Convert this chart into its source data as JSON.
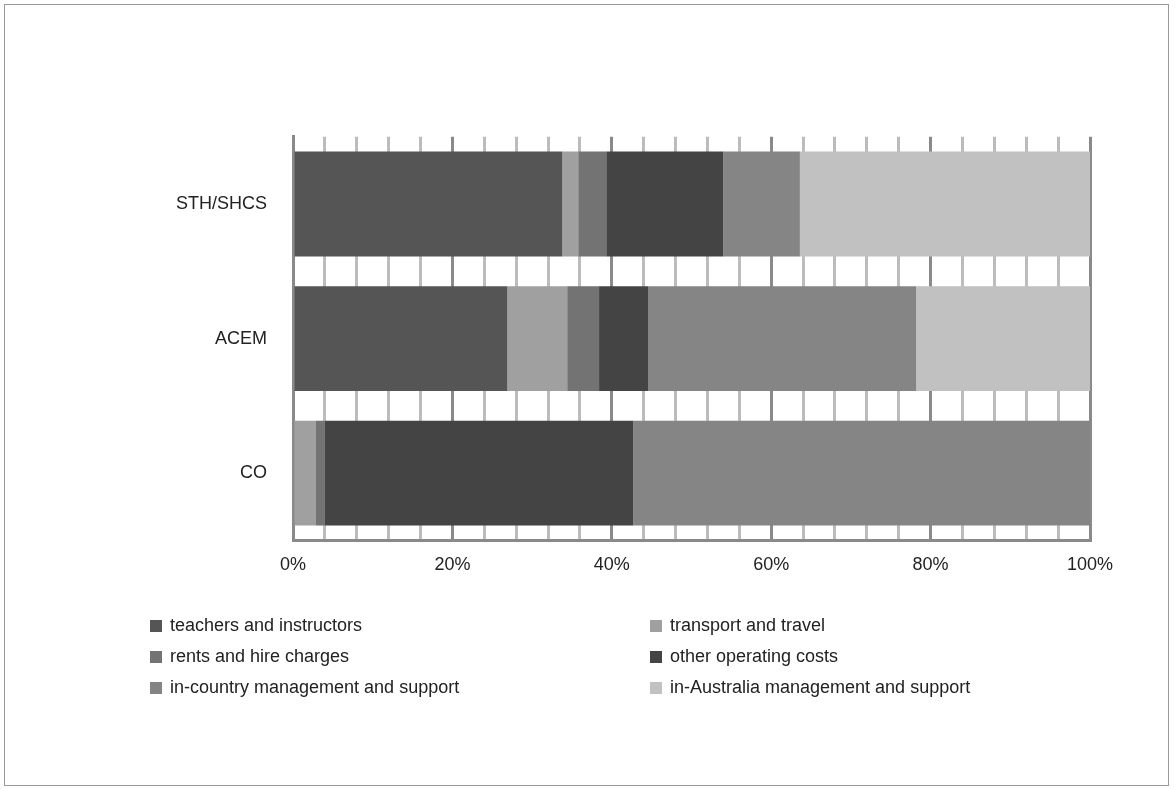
{
  "chart_data": {
    "type": "bar",
    "orientation": "horizontal",
    "stacked": true,
    "categories": [
      "STH/SHCS",
      "ACEM",
      "CO"
    ],
    "series": [
      {
        "name": "teachers and instructors",
        "color": "#555555",
        "values": [
          33.8,
          26.9,
          0
        ]
      },
      {
        "name": "transport and travel",
        "color": "#a0a0a0",
        "values": [
          2.0,
          7.5,
          2.8
        ]
      },
      {
        "name": "rents and hire charges",
        "color": "#737373",
        "values": [
          3.5,
          4.0,
          1.2
        ]
      },
      {
        "name": "other operating costs",
        "color": "#444444",
        "values": [
          14.7,
          6.2,
          38.7
        ]
      },
      {
        "name": "in-country management and support",
        "color": "#858585",
        "values": [
          9.6,
          33.6,
          57.3
        ]
      },
      {
        "name": "in-Australia management and support",
        "color": "#c1c1c1",
        "values": [
          36.4,
          21.8,
          0
        ]
      }
    ],
    "xlim": [
      0,
      100
    ],
    "xticks": [
      {
        "value": 0,
        "label": "0%"
      },
      {
        "value": 4,
        "label": null
      },
      {
        "value": 8,
        "label": null
      },
      {
        "value": 12,
        "label": null
      },
      {
        "value": 16,
        "label": null
      },
      {
        "value": 20,
        "label": "20%"
      },
      {
        "value": 24,
        "label": null
      },
      {
        "value": 28,
        "label": null
      },
      {
        "value": 32,
        "label": null
      },
      {
        "value": 36,
        "label": null
      },
      {
        "value": 40,
        "label": "40%"
      },
      {
        "value": 44,
        "label": null
      },
      {
        "value": 48,
        "label": null
      },
      {
        "value": 52,
        "label": null
      },
      {
        "value": 56,
        "label": null
      },
      {
        "value": 60,
        "label": "60%"
      },
      {
        "value": 64,
        "label": null
      },
      {
        "value": 68,
        "label": null
      },
      {
        "value": 72,
        "label": null
      },
      {
        "value": 76,
        "label": null
      },
      {
        "value": 80,
        "label": "80%"
      },
      {
        "value": 84,
        "label": null
      },
      {
        "value": 88,
        "label": null
      },
      {
        "value": 92,
        "label": null
      },
      {
        "value": 96,
        "label": null
      },
      {
        "value": 100,
        "label": "100%"
      }
    ],
    "grid": "x",
    "legend": "bottom"
  }
}
